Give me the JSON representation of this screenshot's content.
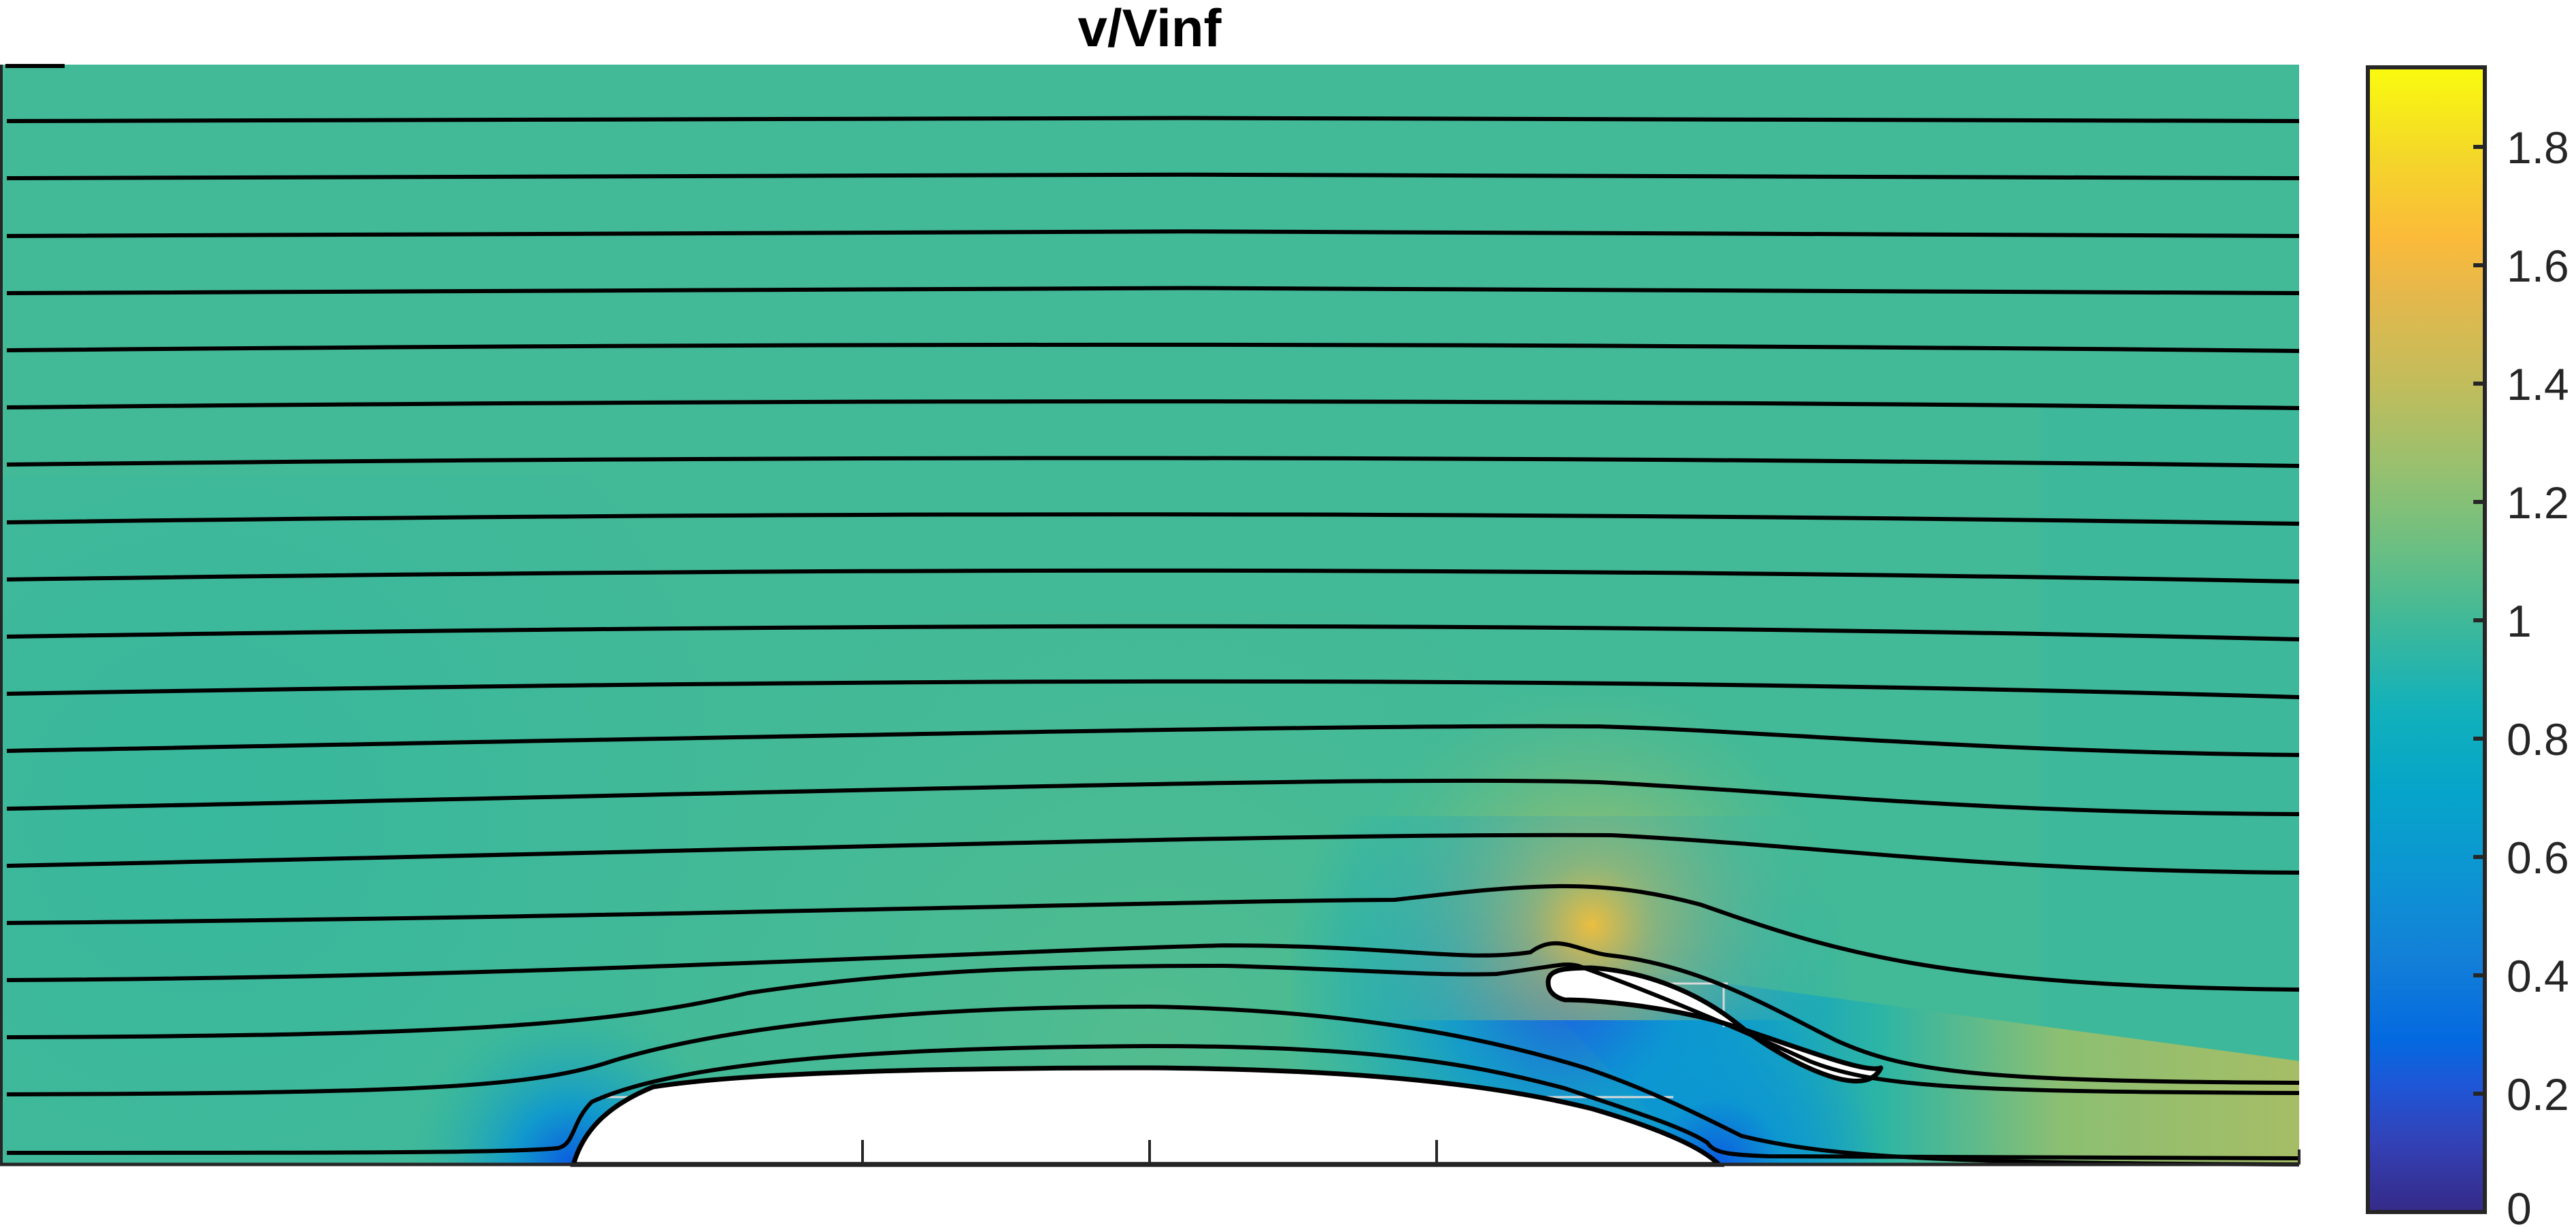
{
  "chart_data": {
    "type": "heatmap",
    "subtype": "filled contour with streamlines",
    "title": "v/Vinf",
    "xlabel": "",
    "ylabel": "",
    "grid": true,
    "colormap": "parula",
    "colorbar": {
      "position": "right",
      "range": [
        0,
        1.93
      ],
      "ticks": [
        0,
        0.2,
        0.4,
        0.6,
        0.8,
        1,
        1.2,
        1.4,
        1.6,
        1.8
      ],
      "tick_labels": [
        "0",
        "0.2",
        "0.4",
        "0.6",
        "0.8",
        "1",
        "1.2",
        "1.4",
        "1.6",
        "1.8"
      ]
    },
    "field_summary": {
      "freestream_value": 1.0,
      "max_value_near_slat_leading_edge": 1.6,
      "min_value_at_stagnation_points": 0.1,
      "wake_value_downstream_right": 1.25,
      "gap_region_value": 0.5
    },
    "bodies": [
      {
        "name": "main-body",
        "shape": "half-ellipse on lower wall"
      },
      {
        "name": "slat",
        "shape": "cambered airfoil element above trailing side"
      }
    ],
    "streamline_count": 20
  },
  "colors": {
    "freestream": "#42b997",
    "stagnation": "#0b5be0",
    "gap_flow": "#0a96d0",
    "wake": "#a4bd69",
    "peak": "#f6c138",
    "streamline": "#000000",
    "frame": "#262626"
  }
}
